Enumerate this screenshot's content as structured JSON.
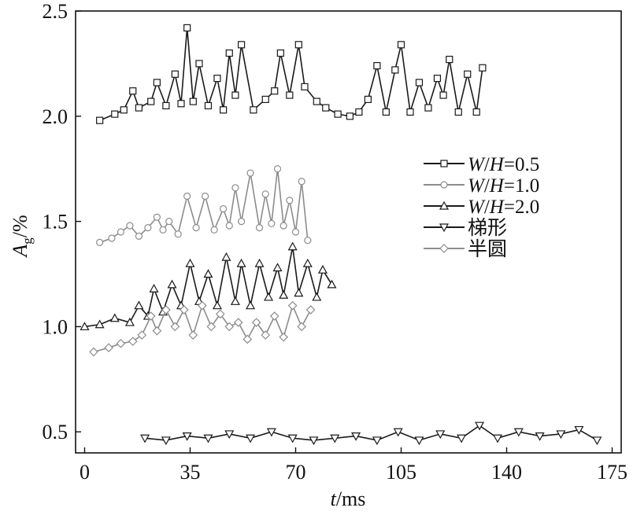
{
  "chart_data": {
    "type": "line",
    "xlabel": "t/ms",
    "ylabel": "A_g/%",
    "xlim": [
      -3,
      178
    ],
    "ylim": [
      0.4,
      2.5
    ],
    "xticks": [
      0,
      35,
      70,
      105,
      140,
      175
    ],
    "yticks": [
      0.5,
      1.0,
      1.5,
      2.0,
      2.5
    ],
    "ytick_labels": [
      "0.5",
      "1.0",
      "1.5",
      "2.0",
      "2.5"
    ],
    "grid": false,
    "legend_position": "right",
    "series": [
      {
        "name": "W/H=0.5",
        "legend_label": {
          "w": "W",
          "slash": "/",
          "h": "H",
          "eq": "=0.5"
        },
        "marker": "square",
        "color": "#1a1a1a",
        "x": [
          5,
          10,
          13,
          16,
          18,
          22,
          24,
          27,
          30,
          32,
          34,
          36,
          38,
          41,
          44,
          46,
          48,
          50,
          52,
          56,
          60,
          63,
          65,
          68,
          71,
          73,
          77,
          80,
          84,
          88,
          91,
          94,
          97,
          100,
          103,
          105,
          108,
          111,
          114,
          117,
          119,
          121,
          124,
          127,
          130,
          132
        ],
        "y": [
          1.98,
          2.01,
          2.03,
          2.12,
          2.04,
          2.07,
          2.16,
          2.05,
          2.2,
          2.06,
          2.42,
          2.07,
          2.25,
          2.05,
          2.18,
          2.03,
          2.3,
          2.1,
          2.34,
          2.03,
          2.08,
          2.12,
          2.3,
          2.1,
          2.34,
          2.14,
          2.07,
          2.04,
          2.01,
          2.0,
          2.02,
          2.08,
          2.24,
          2.02,
          2.22,
          2.34,
          2.02,
          2.16,
          2.04,
          2.18,
          2.1,
          2.27,
          2.02,
          2.2,
          2.02,
          2.23
        ]
      },
      {
        "name": "W/H=1.0",
        "legend_label": {
          "w": "W",
          "slash": "/",
          "h": "H",
          "eq": "=1.0"
        },
        "marker": "circle",
        "color": "#8c8c8c",
        "x": [
          5,
          9,
          12,
          15,
          18,
          21,
          24,
          26,
          28,
          31,
          34,
          37,
          40,
          43,
          46,
          48,
          50,
          52,
          55,
          58,
          60,
          62,
          64,
          66,
          68,
          70,
          72,
          74
        ],
        "y": [
          1.4,
          1.42,
          1.45,
          1.48,
          1.43,
          1.47,
          1.52,
          1.46,
          1.5,
          1.44,
          1.62,
          1.47,
          1.62,
          1.46,
          1.56,
          1.48,
          1.66,
          1.5,
          1.73,
          1.47,
          1.63,
          1.49,
          1.75,
          1.48,
          1.6,
          1.45,
          1.69,
          1.41
        ]
      },
      {
        "name": "W/H=2.0",
        "legend_label": {
          "w": "W",
          "slash": "/",
          "h": "H",
          "eq": "=2.0"
        },
        "marker": "triangle-up",
        "color": "#1a1a1a",
        "x": [
          0,
          5,
          10,
          15,
          18,
          21,
          23,
          26,
          29,
          32,
          35,
          38,
          41,
          44,
          47,
          50,
          52,
          55,
          58,
          61,
          64,
          66,
          69,
          71,
          74,
          77,
          79,
          82
        ],
        "y": [
          1.0,
          1.01,
          1.04,
          1.02,
          1.1,
          1.05,
          1.18,
          1.07,
          1.2,
          1.1,
          1.3,
          1.12,
          1.25,
          1.1,
          1.33,
          1.12,
          1.3,
          1.1,
          1.3,
          1.14,
          1.28,
          1.15,
          1.38,
          1.16,
          1.3,
          1.14,
          1.27,
          1.2
        ]
      },
      {
        "name": "梯形",
        "legend_label": {
          "w": "梯形",
          "slash": "",
          "h": "",
          "eq": ""
        },
        "marker": "triangle-down",
        "color": "#1a1a1a",
        "x": [
          20,
          27,
          34,
          41,
          48,
          55,
          62,
          69,
          76,
          83,
          90,
          97,
          104,
          111,
          118,
          125,
          131,
          137,
          144,
          151,
          158,
          164,
          170
        ],
        "y": [
          0.47,
          0.46,
          0.48,
          0.47,
          0.49,
          0.47,
          0.5,
          0.47,
          0.46,
          0.47,
          0.48,
          0.46,
          0.5,
          0.46,
          0.49,
          0.47,
          0.53,
          0.47,
          0.5,
          0.48,
          0.49,
          0.51,
          0.46
        ]
      },
      {
        "name": "半圆",
        "legend_label": {
          "w": "半圆",
          "slash": "",
          "h": "",
          "eq": ""
        },
        "marker": "diamond",
        "color": "#8c8c8c",
        "x": [
          3,
          8,
          12,
          16,
          19,
          22,
          24,
          27,
          30,
          33,
          36,
          39,
          42,
          45,
          48,
          51,
          54,
          57,
          60,
          63,
          66,
          69,
          72,
          75
        ],
        "y": [
          0.88,
          0.9,
          0.92,
          0.93,
          0.96,
          1.05,
          0.98,
          1.08,
          1.0,
          1.08,
          0.96,
          1.1,
          1.0,
          1.06,
          1.0,
          1.02,
          0.94,
          1.02,
          0.96,
          1.05,
          0.95,
          1.1,
          1.0,
          1.08
        ]
      }
    ]
  }
}
